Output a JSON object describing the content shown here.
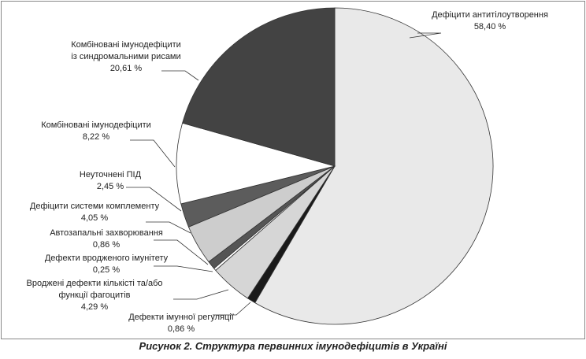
{
  "chart_data": {
    "type": "pie",
    "title": "Рисунок 2. Структура первинних імунодефіцитів в Україні",
    "categories": [
      "Дефіцити антитілоутворення",
      "Дефекти імунної регуляції",
      "Вроджені дефекти кількісті та/або\nфункції фагоцитів",
      "Дефекти вродженого імунітету",
      "Автозапальні захворювання",
      "Дефіцити системи комплементу",
      "Неуточнені ПІД",
      "Комбіновані імунодефіцити",
      "Комбіновані  імунодефіцити\nіз синдромальними рисами"
    ],
    "values": [
      58.4,
      0.86,
      4.29,
      0.25,
      0.86,
      4.05,
      2.45,
      8.22,
      20.61
    ],
    "value_labels": [
      "58,40 %",
      "0,86 %",
      "4,29 %",
      "0,25 %",
      "0,86 %",
      "4,05 %",
      "2,45 %",
      "8,22 %",
      "20,61 %"
    ],
    "colors": [
      "#e9e9e9",
      "#1a1a1a",
      "#d6d6d6",
      "#ffffff",
      "#555555",
      "#cdcdcd",
      "#5c5c5c",
      "#ffffff",
      "#434343"
    ]
  }
}
